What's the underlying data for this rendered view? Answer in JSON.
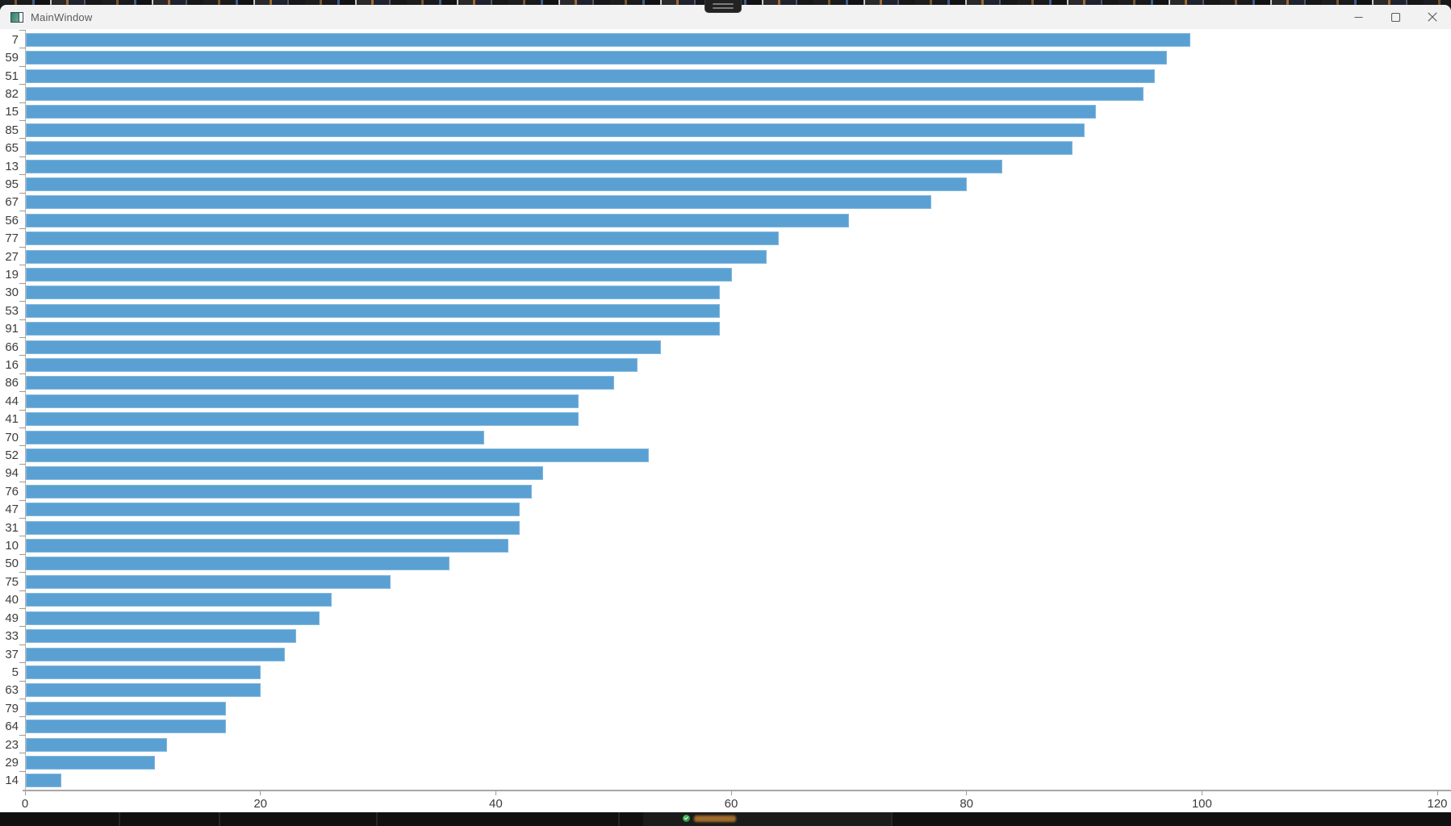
{
  "window": {
    "title": "MainWindow",
    "controls": [
      "minimize",
      "maximize",
      "close"
    ]
  },
  "chart_data": {
    "type": "bar",
    "orientation": "horizontal",
    "title": "",
    "xlabel": "",
    "ylabel": "",
    "xlim": [
      0,
      120
    ],
    "x_ticks": [
      0,
      20,
      40,
      60,
      80,
      100,
      120
    ],
    "grid": false,
    "legend": null,
    "bar_color": "#5aa0d3",
    "categories": [
      "7",
      "59",
      "51",
      "82",
      "15",
      "85",
      "65",
      "13",
      "95",
      "67",
      "56",
      "77",
      "27",
      "19",
      "30",
      "53",
      "91",
      "66",
      "16",
      "86",
      "44",
      "41",
      "70",
      "52",
      "94",
      "76",
      "47",
      "31",
      "10",
      "50",
      "75",
      "40",
      "49",
      "33",
      "37",
      "5",
      "63",
      "79",
      "64",
      "23",
      "29",
      "14"
    ],
    "values": [
      99,
      97,
      96,
      95,
      91,
      90,
      89,
      83,
      80,
      77,
      70,
      64,
      63,
      60,
      59,
      59,
      59,
      54,
      52,
      50,
      47,
      47,
      39,
      53,
      44,
      43,
      42,
      42,
      41,
      36,
      31,
      26,
      25,
      23,
      22,
      20,
      20,
      17,
      17,
      12,
      11,
      3
    ]
  },
  "colors": {
    "titlebar_bg": "#f2f2f2",
    "chart_bg": "#ffffff",
    "bar": "#5aa0d3",
    "axis": "#a6a6a6",
    "tick_label": "#3c3c3c",
    "title_text": "#5a5a5a",
    "desktop_strip": "#1b1b1b",
    "taskbar_strip": "#101010",
    "status_dot": "#2f9e44"
  }
}
